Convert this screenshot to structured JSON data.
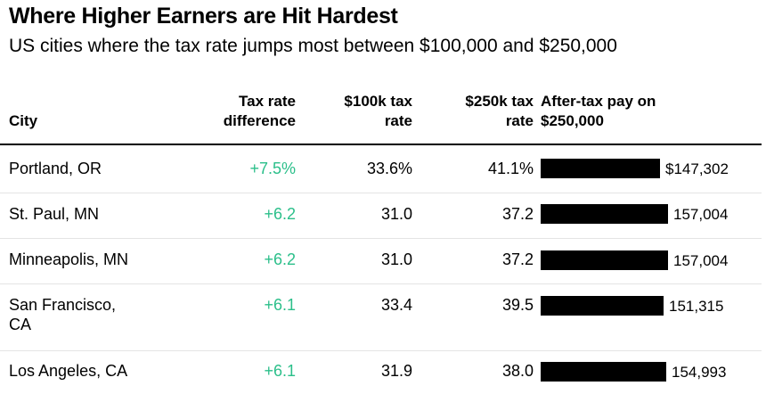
{
  "header": {
    "title": "Where Higher Earners are Hit Hardest",
    "subtitle": "US cities where the tax rate jumps most between $100,000 and $250,000"
  },
  "columns": {
    "city": "City",
    "diff_line1": "Tax rate",
    "diff_line2": "difference",
    "r100_line1": "$100k tax",
    "r100_line2": "rate",
    "r250_line1": "$250k tax",
    "r250_line2": "rate",
    "pay_line1": "After-tax pay on",
    "pay_line2": "$250,000"
  },
  "rows": [
    {
      "city": "Portland, OR",
      "diff": "+7.5%",
      "r100": "33.6%",
      "r250": "41.1%",
      "pay_label": "$147,302"
    },
    {
      "city": "St. Paul, MN",
      "diff": "+6.2",
      "r100": "31.0",
      "r250": "37.2",
      "pay_label": "157,004"
    },
    {
      "city": "Minneapolis, MN",
      "diff": "+6.2",
      "r100": "31.0",
      "r250": "37.2",
      "pay_label": "157,004"
    },
    {
      "city": "San Francisco, CA",
      "diff": "+6.1",
      "r100": "33.4",
      "r250": "39.5",
      "pay_label": "151,315"
    },
    {
      "city": "Los Angeles, CA",
      "diff": "+6.1",
      "r100": "31.9",
      "r250": "38.0",
      "pay_label": "154,993"
    }
  ],
  "colors": {
    "positive_difference": "#2bbf8a",
    "bar": "#000000",
    "row_rule": "#e4e4e4"
  },
  "chart_data": {
    "type": "table",
    "title": "Where Higher Earners are Hit Hardest",
    "subtitle": "US cities where the tax rate jumps most between $100,000 and $250,000",
    "columns": [
      "City",
      "Tax rate difference",
      "$100k tax rate",
      "$250k tax rate",
      "After-tax pay on $250,000"
    ],
    "categories": [
      "Portland, OR",
      "St. Paul, MN",
      "Minneapolis, MN",
      "San Francisco, CA",
      "Los Angeles, CA"
    ],
    "series": [
      {
        "name": "Tax rate difference",
        "values": [
          7.5,
          6.2,
          6.2,
          6.1,
          6.1
        ]
      },
      {
        "name": "$100k tax rate",
        "values": [
          33.6,
          31.0,
          31.0,
          33.4,
          31.9
        ]
      },
      {
        "name": "$250k tax rate",
        "values": [
          41.1,
          37.2,
          37.2,
          39.5,
          38.0
        ]
      },
      {
        "name": "After-tax pay on $250,000",
        "values": [
          147302,
          157004,
          157004,
          151315,
          154993
        ]
      }
    ],
    "bar_scale_max": 157004
  }
}
